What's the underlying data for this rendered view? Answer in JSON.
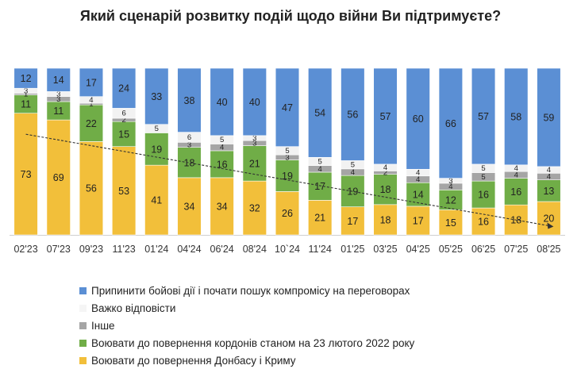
{
  "chart_data": {
    "type": "bar",
    "stacked": "100%",
    "title": "Який сценарій розвитку подій щодо війни Ви підтримуєте?",
    "categories": [
      "02'23",
      "07'23",
      "09'23",
      "11'23",
      "01'24",
      "04'24",
      "06'24",
      "08'24",
      "10`24",
      "11'24",
      "01'25",
      "03'25",
      "04'25",
      "05'25",
      "06'25",
      "07'25",
      "08'25"
    ],
    "series": [
      {
        "name": "Воювати до повернення Донбасу і Криму",
        "color": "#f2bf3a",
        "values": [
          73,
          69,
          56,
          53,
          41,
          34,
          34,
          32,
          26,
          21,
          17,
          18,
          17,
          15,
          16,
          18,
          20
        ]
      },
      {
        "name": "Воювати до повернення кордонів станом на 23 лютого 2022 року",
        "color": "#70ad47",
        "values": [
          11,
          11,
          22,
          15,
          19,
          18,
          16,
          21,
          19,
          17,
          19,
          18,
          14,
          12,
          16,
          16,
          13
        ]
      },
      {
        "name": "Інше",
        "color": "#a5a5a5",
        "values": [
          1,
          3,
          1,
          2,
          0,
          3,
          4,
          3,
          3,
          4,
          4,
          2,
          4,
          4,
          5,
          4,
          4
        ]
      },
      {
        "name": "Важко відповісти",
        "color": "#f2f2f2",
        "values": [
          3,
          3,
          4,
          6,
          5,
          6,
          5,
          3,
          5,
          5,
          5,
          4,
          4,
          3,
          5,
          4,
          4
        ]
      },
      {
        "name": "Припинити бойові дії і почати пошук компромісу на переговорах",
        "color": "#5b8fd4",
        "values": [
          12,
          14,
          17,
          24,
          33,
          38,
          40,
          40,
          47,
          54,
          56,
          57,
          60,
          66,
          57,
          58,
          59
        ]
      }
    ],
    "ylim": [
      0,
      100
    ],
    "trendline": true,
    "legend_position": "bottom"
  }
}
